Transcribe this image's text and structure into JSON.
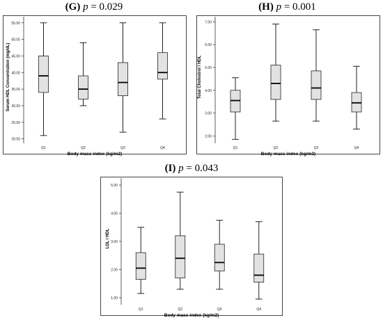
{
  "chart_data": [
    {
      "type": "box",
      "panel_label": "(G)",
      "p_label": "p",
      "p_value": "= 0.029",
      "xlabel": "Body mass index (kg/m2)",
      "ylabel": "Serum HDL Concentration (mg/dL)",
      "categories": [
        "Q1",
        "Q2",
        "Q3",
        "Q4"
      ],
      "ylim": [
        19.5,
        56
      ],
      "yticks": [
        20,
        25,
        30,
        35,
        40,
        45,
        50,
        55
      ],
      "ytick_labels": [
        "20.00",
        "25.00",
        "30.00",
        "35.00",
        "40.00",
        "45.00",
        "50.00",
        "55.00"
      ],
      "boxes": [
        {
          "min": 21,
          "q1": 34,
          "median": 39,
          "q3": 45,
          "max": 55
        },
        {
          "min": 30,
          "q1": 32,
          "median": 35,
          "q3": 39,
          "max": 49
        },
        {
          "min": 22,
          "q1": 33,
          "median": 37,
          "q3": 43,
          "max": 55
        },
        {
          "min": 26,
          "q1": 38,
          "median": 40,
          "q3": 46,
          "max": 55
        }
      ]
    },
    {
      "type": "box",
      "panel_label": "(H)",
      "p_label": "p",
      "p_value": "= 0.001",
      "xlabel": "Body mass index (kg/m2)",
      "ylabel": "Total Cholestrol / HDL",
      "categories": [
        "Q1",
        "Q2",
        "Q3",
        "Q4"
      ],
      "ylim": [
        1.8,
        7.1
      ],
      "yticks": [
        2,
        3,
        4,
        5,
        6,
        7
      ],
      "ytick_labels": [
        "2.00",
        "3.00",
        "4.00",
        "5.00",
        "6.00",
        "7.00"
      ],
      "boxes": [
        {
          "min": 1.85,
          "q1": 3.05,
          "median": 3.55,
          "q3": 4.0,
          "max": 4.55
        },
        {
          "min": 2.65,
          "q1": 3.6,
          "median": 4.3,
          "q3": 5.1,
          "max": 6.9
        },
        {
          "min": 2.65,
          "q1": 3.6,
          "median": 4.1,
          "q3": 4.85,
          "max": 6.65
        },
        {
          "min": 2.3,
          "q1": 3.05,
          "median": 3.45,
          "q3": 3.9,
          "max": 5.05
        }
      ]
    },
    {
      "type": "box",
      "panel_label": "(I)",
      "p_label": "p",
      "p_value": "= 0.043",
      "xlabel": "Body mass index (kg/m2)",
      "ylabel": "LDL / HDL",
      "categories": [
        "Q1",
        "Q2",
        "Q3",
        "Q4"
      ],
      "ylim": [
        0.85,
        5.15
      ],
      "yticks": [
        1,
        2,
        3,
        4,
        5
      ],
      "ytick_labels": [
        "1.00",
        "2.00",
        "3.00",
        "4.00",
        "5.00"
      ],
      "boxes": [
        {
          "min": 1.15,
          "q1": 1.65,
          "median": 2.05,
          "q3": 2.6,
          "max": 3.5
        },
        {
          "min": 1.3,
          "q1": 1.7,
          "median": 2.4,
          "q3": 3.2,
          "max": 4.75
        },
        {
          "min": 1.3,
          "q1": 1.95,
          "median": 2.25,
          "q3": 2.9,
          "max": 3.75
        },
        {
          "min": 0.95,
          "q1": 1.55,
          "median": 1.8,
          "q3": 2.55,
          "max": 3.7
        }
      ]
    }
  ]
}
